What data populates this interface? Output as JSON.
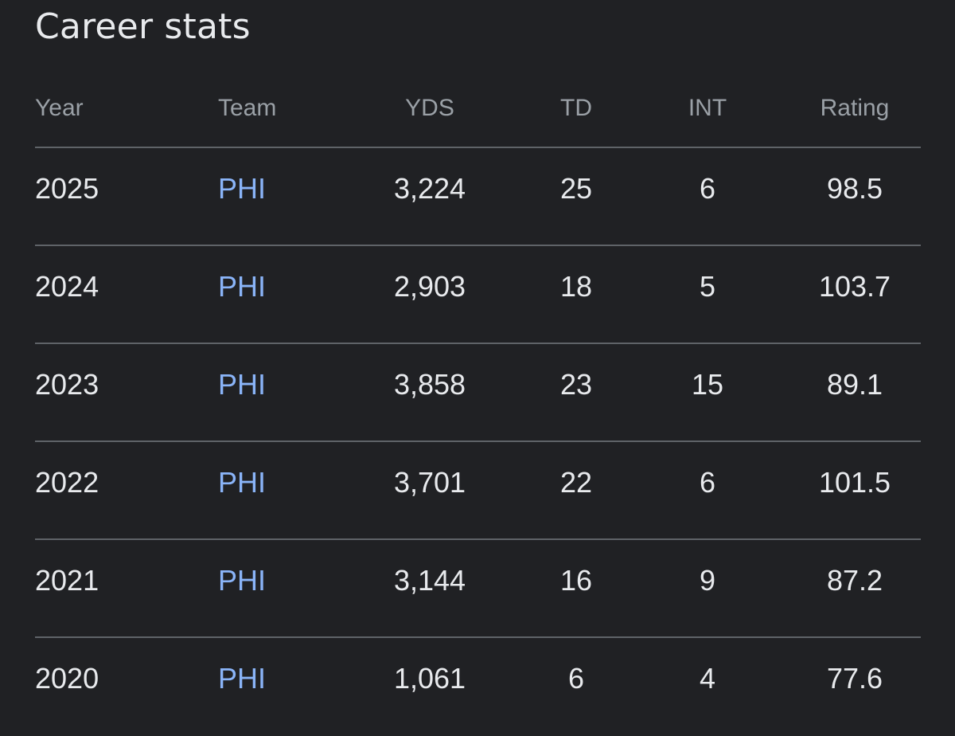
{
  "title": "Career stats",
  "colors": {
    "background": "#202124",
    "text": "#e8eaed",
    "header_text": "#9aa0a6",
    "link": "#8ab4f8",
    "divider": "#5f6368"
  },
  "table": {
    "headers": {
      "year": "Year",
      "team": "Team",
      "yds": "YDS",
      "td": "TD",
      "int": "INT",
      "rating": "Rating"
    },
    "rows": [
      {
        "year": "2025",
        "team": "PHI",
        "yds": "3,224",
        "td": "25",
        "int": "6",
        "rating": "98.5"
      },
      {
        "year": "2024",
        "team": "PHI",
        "yds": "2,903",
        "td": "18",
        "int": "5",
        "rating": "103.7"
      },
      {
        "year": "2023",
        "team": "PHI",
        "yds": "3,858",
        "td": "23",
        "int": "15",
        "rating": "89.1"
      },
      {
        "year": "2022",
        "team": "PHI",
        "yds": "3,701",
        "td": "22",
        "int": "6",
        "rating": "101.5"
      },
      {
        "year": "2021",
        "team": "PHI",
        "yds": "3,144",
        "td": "16",
        "int": "9",
        "rating": "87.2"
      },
      {
        "year": "2020",
        "team": "PHI",
        "yds": "1,061",
        "td": "6",
        "int": "4",
        "rating": "77.6"
      }
    ]
  }
}
